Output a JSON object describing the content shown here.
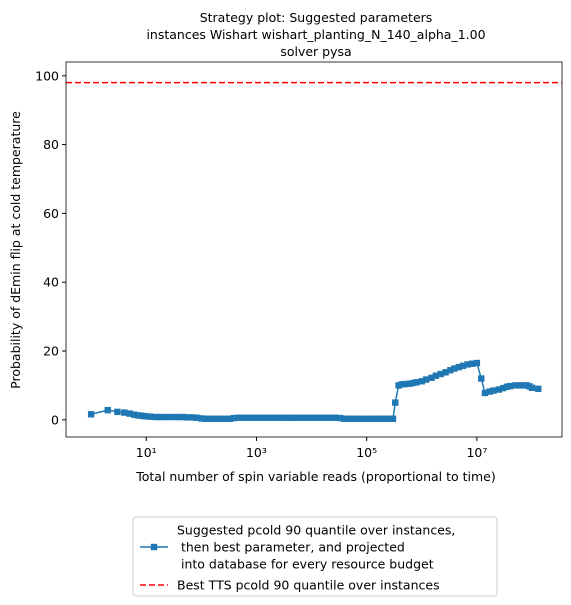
{
  "chart_data": {
    "type": "line",
    "title": "Strategy plot: Suggested parameters\ninstances Wishart wishart_planting_N_140_alpha_1.00\nsolver pysa",
    "xlabel": "Total number of spin variable reads (proportional to time)",
    "ylabel": "Probability of dEmin flip at cold temperature",
    "xscale": "log",
    "xlim": [
      0.35,
      350000000
    ],
    "ylim": [
      -5,
      104
    ],
    "xticks": [
      {
        "value": 10,
        "label": "10¹"
      },
      {
        "value": 1000,
        "label": "10³"
      },
      {
        "value": 100000,
        "label": "10⁵"
      },
      {
        "value": 10000000,
        "label": "10⁷"
      }
    ],
    "yticks": [
      0,
      20,
      40,
      60,
      80,
      100
    ],
    "legend": "below",
    "series": [
      {
        "name": "Suggested pcold 90 quantile over instances,\n  then best parameter, and projected\n  into database for every resource budget",
        "color": "#1f77b4",
        "marker": "square",
        "x": [
          1,
          2,
          3,
          4,
          5,
          6,
          7,
          8,
          9,
          10,
          12,
          15,
          18,
          22,
          27,
          33,
          39,
          47,
          56,
          68,
          82,
          100,
          120,
          150,
          180,
          220,
          270,
          330,
          390,
          470,
          560,
          680,
          820,
          1000,
          1200,
          1500,
          1800,
          2200,
          2700,
          3300,
          3900,
          4700,
          5600,
          6800,
          8200,
          10000,
          12000,
          15000,
          18000,
          22000,
          27000,
          33000,
          39000,
          47000,
          56000,
          68000,
          82000,
          100000,
          120000,
          150000,
          180000,
          220000,
          270000,
          300000,
          330000,
          380000,
          440000,
          500000,
          600000,
          700000,
          800000,
          1000000,
          1200000,
          1500000,
          1800000,
          2200000,
          2700000,
          3300000,
          3900000,
          4700000,
          5600000,
          6800000,
          8200000,
          10000000,
          12000000,
          14000000,
          17000000,
          20000000,
          25000000,
          30000000,
          35000000,
          40000000,
          50000000,
          60000000,
          70000000,
          80000000,
          90000000,
          100000000,
          130000000
        ],
        "values": [
          1.6,
          2.8,
          2.3,
          2.1,
          1.8,
          1.5,
          1.3,
          1.2,
          1.1,
          1.0,
          0.9,
          0.8,
          0.8,
          0.8,
          0.8,
          0.8,
          0.8,
          0.8,
          0.7,
          0.7,
          0.6,
          0.4,
          0.3,
          0.3,
          0.3,
          0.3,
          0.3,
          0.3,
          0.5,
          0.6,
          0.6,
          0.6,
          0.6,
          0.6,
          0.6,
          0.6,
          0.6,
          0.6,
          0.6,
          0.6,
          0.6,
          0.6,
          0.6,
          0.6,
          0.6,
          0.6,
          0.6,
          0.6,
          0.6,
          0.6,
          0.6,
          0.5,
          0.3,
          0.3,
          0.3,
          0.3,
          0.3,
          0.3,
          0.3,
          0.3,
          0.3,
          0.3,
          0.3,
          0.3,
          5.0,
          10.0,
          10.3,
          10.4,
          10.5,
          10.7,
          10.9,
          11.2,
          11.7,
          12.2,
          12.8,
          13.3,
          13.8,
          14.4,
          14.9,
          15.3,
          15.7,
          16.1,
          16.3,
          16.5,
          12.0,
          7.8,
          8.2,
          8.5,
          8.8,
          9.2,
          9.6,
          9.8,
          10.0,
          10.0,
          10.0,
          10.0,
          9.7,
          9.3,
          9.0
        ]
      },
      {
        "name": "Best TTS pcold 90 quantile over instances",
        "color": "#ff0000",
        "type": "hline",
        "style": "dashed",
        "values": [
          98
        ]
      }
    ]
  }
}
